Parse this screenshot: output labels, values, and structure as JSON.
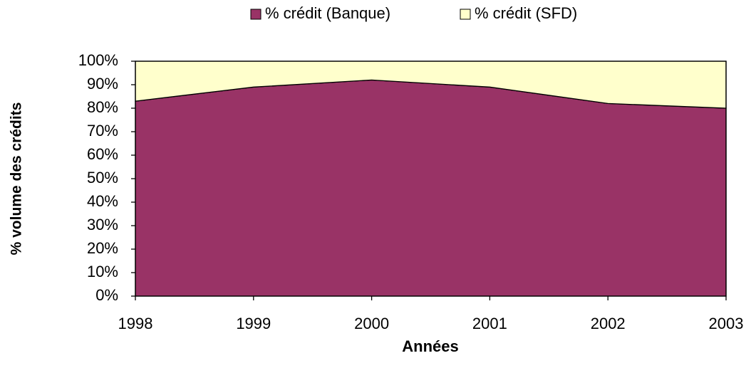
{
  "chart_data": {
    "type": "stacked-area",
    "x_label": "Années",
    "y_label": "% volume des crédits",
    "categories": [
      "1998",
      "1999",
      "2000",
      "2001",
      "2002",
      "2003"
    ],
    "series": [
      {
        "name": "% crédit (Banque)",
        "color": "#993366",
        "values": [
          83,
          89,
          92,
          89,
          82,
          80
        ]
      },
      {
        "name": "% crédit (SFD)",
        "color": "#ffffcc",
        "values": [
          17,
          11,
          8,
          11,
          18,
          20
        ]
      }
    ],
    "ylim": [
      0,
      100
    ],
    "yticks": [
      {
        "value": 0,
        "label": "0%"
      },
      {
        "value": 10,
        "label": "10%"
      },
      {
        "value": 20,
        "label": "20%"
      },
      {
        "value": 30,
        "label": "30%"
      },
      {
        "value": 40,
        "label": "40%"
      },
      {
        "value": 50,
        "label": "50%"
      },
      {
        "value": 60,
        "label": "60%"
      },
      {
        "value": 70,
        "label": "70%"
      },
      {
        "value": 80,
        "label": "80%"
      },
      {
        "value": 90,
        "label": "90%"
      },
      {
        "value": 100,
        "label": "100%"
      }
    ],
    "legend": "top"
  }
}
